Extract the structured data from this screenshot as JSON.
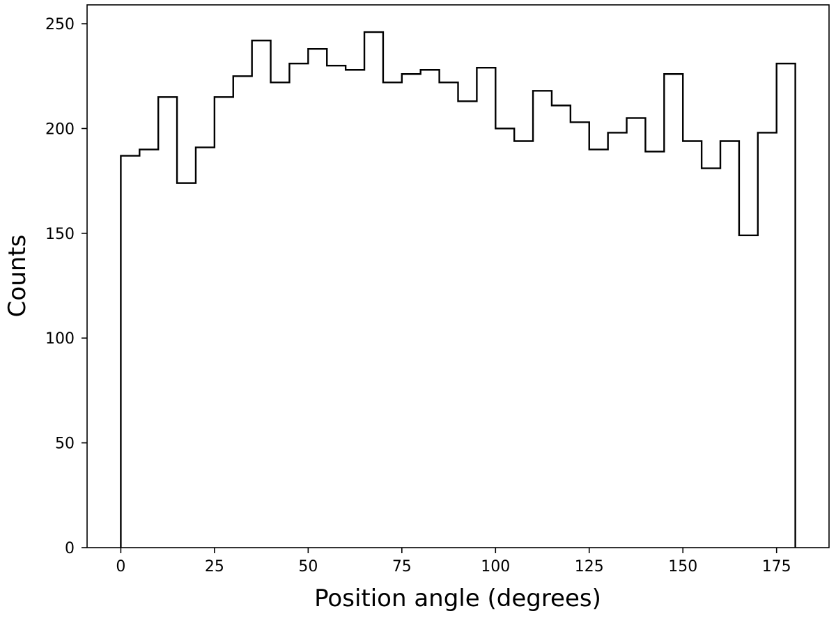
{
  "chart_data": {
    "type": "histogram",
    "title": "",
    "xlabel": "Position angle (degrees)",
    "ylabel": "Counts",
    "xlim": [
      -9,
      189
    ],
    "ylim": [
      0,
      259
    ],
    "xticks": [
      0,
      25,
      50,
      75,
      100,
      125,
      150,
      175
    ],
    "yticks": [
      0,
      50,
      100,
      150,
      200,
      250
    ],
    "bin_edges": [
      0,
      5,
      10,
      15,
      20,
      25,
      30,
      35,
      40,
      45,
      50,
      55,
      60,
      65,
      70,
      75,
      80,
      85,
      90,
      95,
      100,
      105,
      110,
      115,
      120,
      125,
      130,
      135,
      140,
      145,
      150,
      155,
      160,
      165,
      170,
      175,
      180
    ],
    "counts": [
      187,
      190,
      215,
      174,
      191,
      215,
      225,
      242,
      222,
      231,
      238,
      230,
      228,
      246,
      222,
      226,
      228,
      222,
      213,
      229,
      200,
      194,
      218,
      211,
      203,
      190,
      198,
      205,
      189,
      226,
      194,
      181,
      194,
      149,
      198,
      231
    ],
    "histtype": "step",
    "color": "#000000",
    "grid": false
  }
}
